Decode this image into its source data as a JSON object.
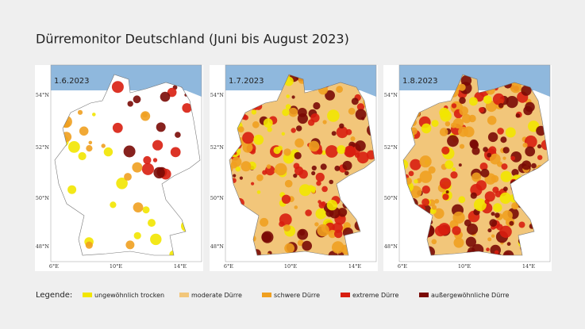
{
  "title": "Dürremonitor Deutschland (Juni bis August 2023)",
  "maps": [
    {
      "date": "1.6.2023",
      "lat_labels": [
        "54°N",
        "52°N",
        "50°N",
        "48°N"
      ],
      "lon_labels": [
        "6°E",
        "10°E",
        "14°E"
      ]
    },
    {
      "date": "1.7.2023",
      "lat_labels": [
        "54°N",
        "52°N",
        "50°N",
        "48°N"
      ],
      "lon_labels": [
        "6°E",
        "10°E",
        "14°E"
      ]
    },
    {
      "date": "1.8.2023",
      "lat_labels": [
        "54°N",
        "52°N",
        "50°N",
        "48°N"
      ],
      "lon_labels": [
        "6°E",
        "10°E",
        "14°E"
      ]
    }
  ],
  "legend": {
    "label": "Legende:",
    "items": [
      {
        "label": "ungewöhnlich trocken",
        "color": "#f2e600"
      },
      {
        "label": "moderate Dürre",
        "color": "#f2c67a"
      },
      {
        "label": "schwere Dürre",
        "color": "#f0a020"
      },
      {
        "label": "extreme Dürre",
        "color": "#d81e10"
      },
      {
        "label": "außergewöhnliche Dürre",
        "color": "#7a0a05"
      }
    ]
  }
}
